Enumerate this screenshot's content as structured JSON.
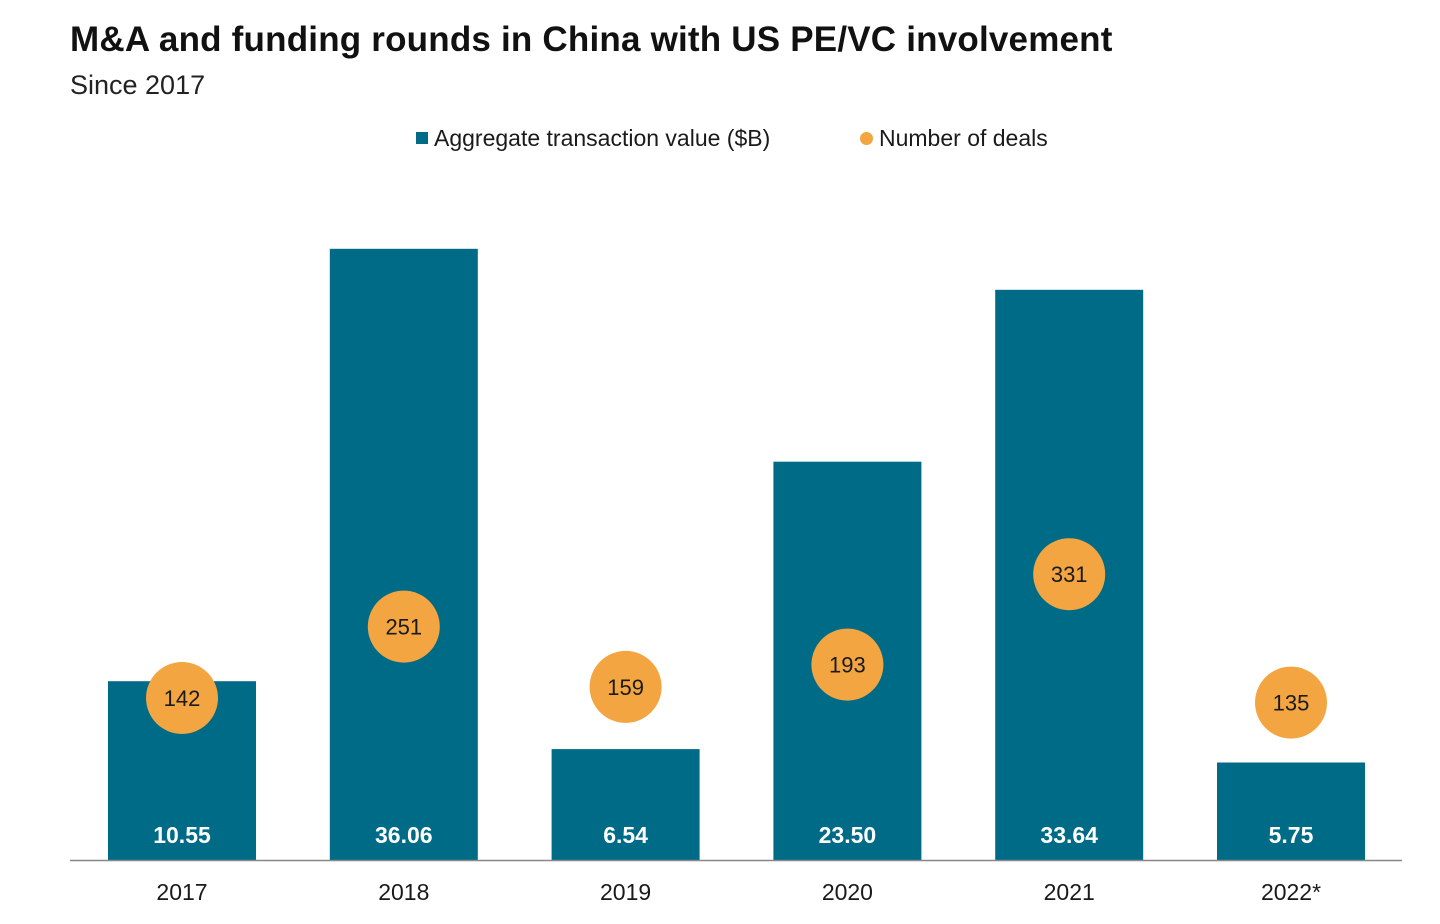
{
  "title": "M&A and funding rounds in China with US PE/VC involvement",
  "subtitle": "Since 2017",
  "colors": {
    "bar": "#006b87",
    "dot": "#f2a541",
    "bar_label": "#ffffff",
    "dot_label": "#1a1a1a",
    "axis": "#888888"
  },
  "legend": {
    "bars_label": "Aggregate transaction value ($B)",
    "dots_label": "Number of deals",
    "placement": "top-center"
  },
  "chart_data": {
    "type": "bar",
    "title": "M&A and funding rounds in China with US PE/VC involvement",
    "subtitle": "Since 2017",
    "categories": [
      "2017",
      "2018",
      "2019",
      "2020",
      "2021",
      "2022*"
    ],
    "series": [
      {
        "name": "Aggregate transaction value ($B)",
        "type": "bar",
        "values": [
          10.55,
          36.06,
          6.54,
          23.5,
          33.64,
          5.75
        ],
        "labels": [
          "10.55",
          "36.06",
          "6.54",
          "23.50",
          "33.64",
          "5.75"
        ]
      },
      {
        "name": "Number of deals",
        "type": "scatter",
        "values": [
          142,
          251,
          159,
          193,
          331,
          135
        ],
        "labels": [
          "142",
          "251",
          "159",
          "193",
          "331",
          "135"
        ]
      }
    ],
    "grid": false,
    "legend_placement": "top-center"
  }
}
